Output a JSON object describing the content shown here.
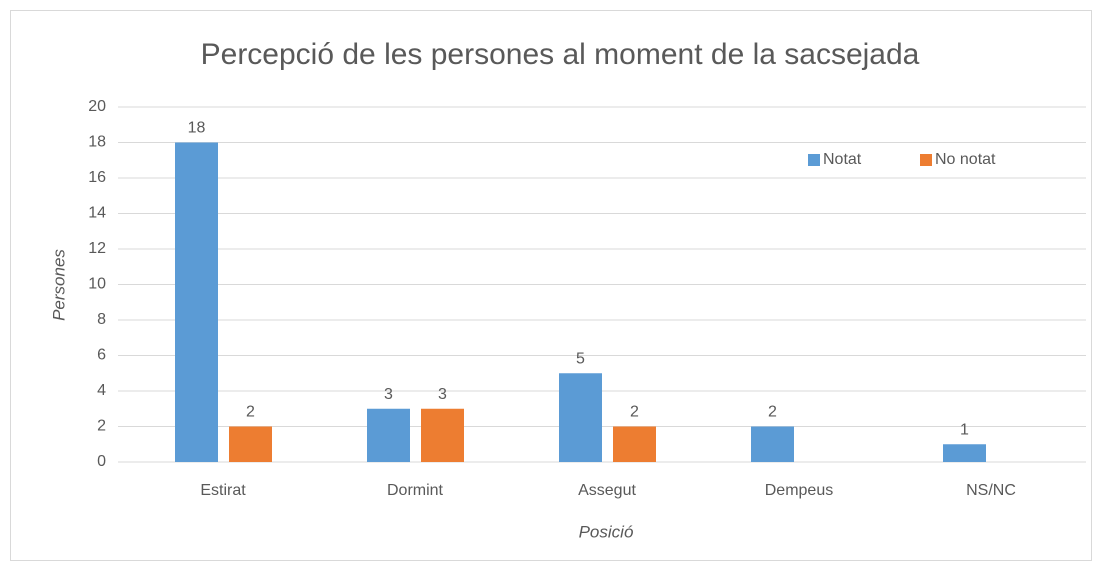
{
  "chart_data": {
    "type": "bar",
    "title": "Percepció de les persones al moment de la sacsejada",
    "x_label": "Posició",
    "y_label": "Persones",
    "categories": [
      "Estirat",
      "Dormint",
      "Assegut",
      "Dempeus",
      "NS/NC"
    ],
    "series": [
      {
        "name": "Notat",
        "color": "#5b9bd5",
        "values": [
          18,
          3,
          5,
          2,
          1
        ]
      },
      {
        "name": "No notat",
        "color": "#ed7d31",
        "values": [
          2,
          3,
          2,
          null,
          null
        ]
      }
    ],
    "ylim": [
      0,
      20
    ],
    "yticks": [
      0,
      2,
      4,
      6,
      8,
      10,
      12,
      14,
      16,
      18,
      20
    ],
    "grid": true,
    "legend": "top-right"
  }
}
